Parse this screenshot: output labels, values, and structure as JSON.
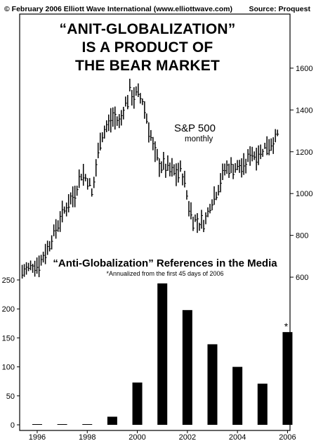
{
  "header": {
    "left": "© February 2006 Elliott Wave International (www.elliottwave.com)",
    "right": "Source: Proquest"
  },
  "title": {
    "line1": "“ANIT-GLOBALIZATION”",
    "line2": "IS A PRODUCT OF",
    "line3": "THE BEAR MARKET"
  },
  "chart_data": [
    {
      "type": "line",
      "title": "S&P 500",
      "subtitle": "monthly",
      "xlim": [
        1995.8,
        2006.6
      ],
      "ylim": [
        580,
        1640
      ],
      "yaxis_position": "right",
      "y_ticks": [
        600,
        800,
        1000,
        1200,
        1400,
        1600
      ],
      "anchors": [
        [
          1995.9,
          620
        ],
        [
          1996.3,
          655
        ],
        [
          1996.6,
          660
        ],
        [
          1997.0,
          760
        ],
        [
          1997.5,
          900
        ],
        [
          1997.8,
          960
        ],
        [
          1998.0,
          1000
        ],
        [
          1998.3,
          1100
        ],
        [
          1998.6,
          1040
        ],
        [
          1998.7,
          990
        ],
        [
          1999.0,
          1250
        ],
        [
          1999.5,
          1370
        ],
        [
          1999.8,
          1340
        ],
        [
          2000.0,
          1420
        ],
        [
          2000.2,
          1480
        ],
        [
          2000.7,
          1450
        ],
        [
          2000.9,
          1350
        ],
        [
          2001.0,
          1300
        ],
        [
          2001.2,
          1170
        ],
        [
          2001.7,
          1110
        ],
        [
          2001.9,
          1100
        ],
        [
          2002.3,
          1100
        ],
        [
          2002.6,
          920
        ],
        [
          2002.8,
          870
        ],
        [
          2003.2,
          860
        ],
        [
          2003.4,
          940
        ],
        [
          2003.7,
          1010
        ],
        [
          2004.0,
          1120
        ],
        [
          2004.4,
          1120
        ],
        [
          2004.8,
          1130
        ],
        [
          2005.0,
          1190
        ],
        [
          2005.3,
          1180
        ],
        [
          2005.6,
          1220
        ],
        [
          2005.9,
          1240
        ],
        [
          2006.1,
          1280
        ]
      ],
      "point_count": 122
    },
    {
      "type": "bar",
      "title": "“Anti-Globalization” References in the Media",
      "note": "*Annualized from the first 45 days of 2006",
      "categories": [
        "1996",
        "1997",
        "1998",
        "1999",
        "2000",
        "2001",
        "2002",
        "2003",
        "2004",
        "2005",
        "2006"
      ],
      "values": [
        0,
        1,
        0,
        14,
        73,
        244,
        198,
        139,
        100,
        71,
        160
      ],
      "annotation": {
        "category": "2006",
        "text": "*"
      },
      "ylim": [
        0,
        250
      ],
      "y_ticks": [
        0,
        50,
        100,
        150,
        200,
        250
      ],
      "x_ticks": [
        "1996",
        "1998",
        "2000",
        "2002",
        "2004",
        "2006"
      ]
    }
  ]
}
